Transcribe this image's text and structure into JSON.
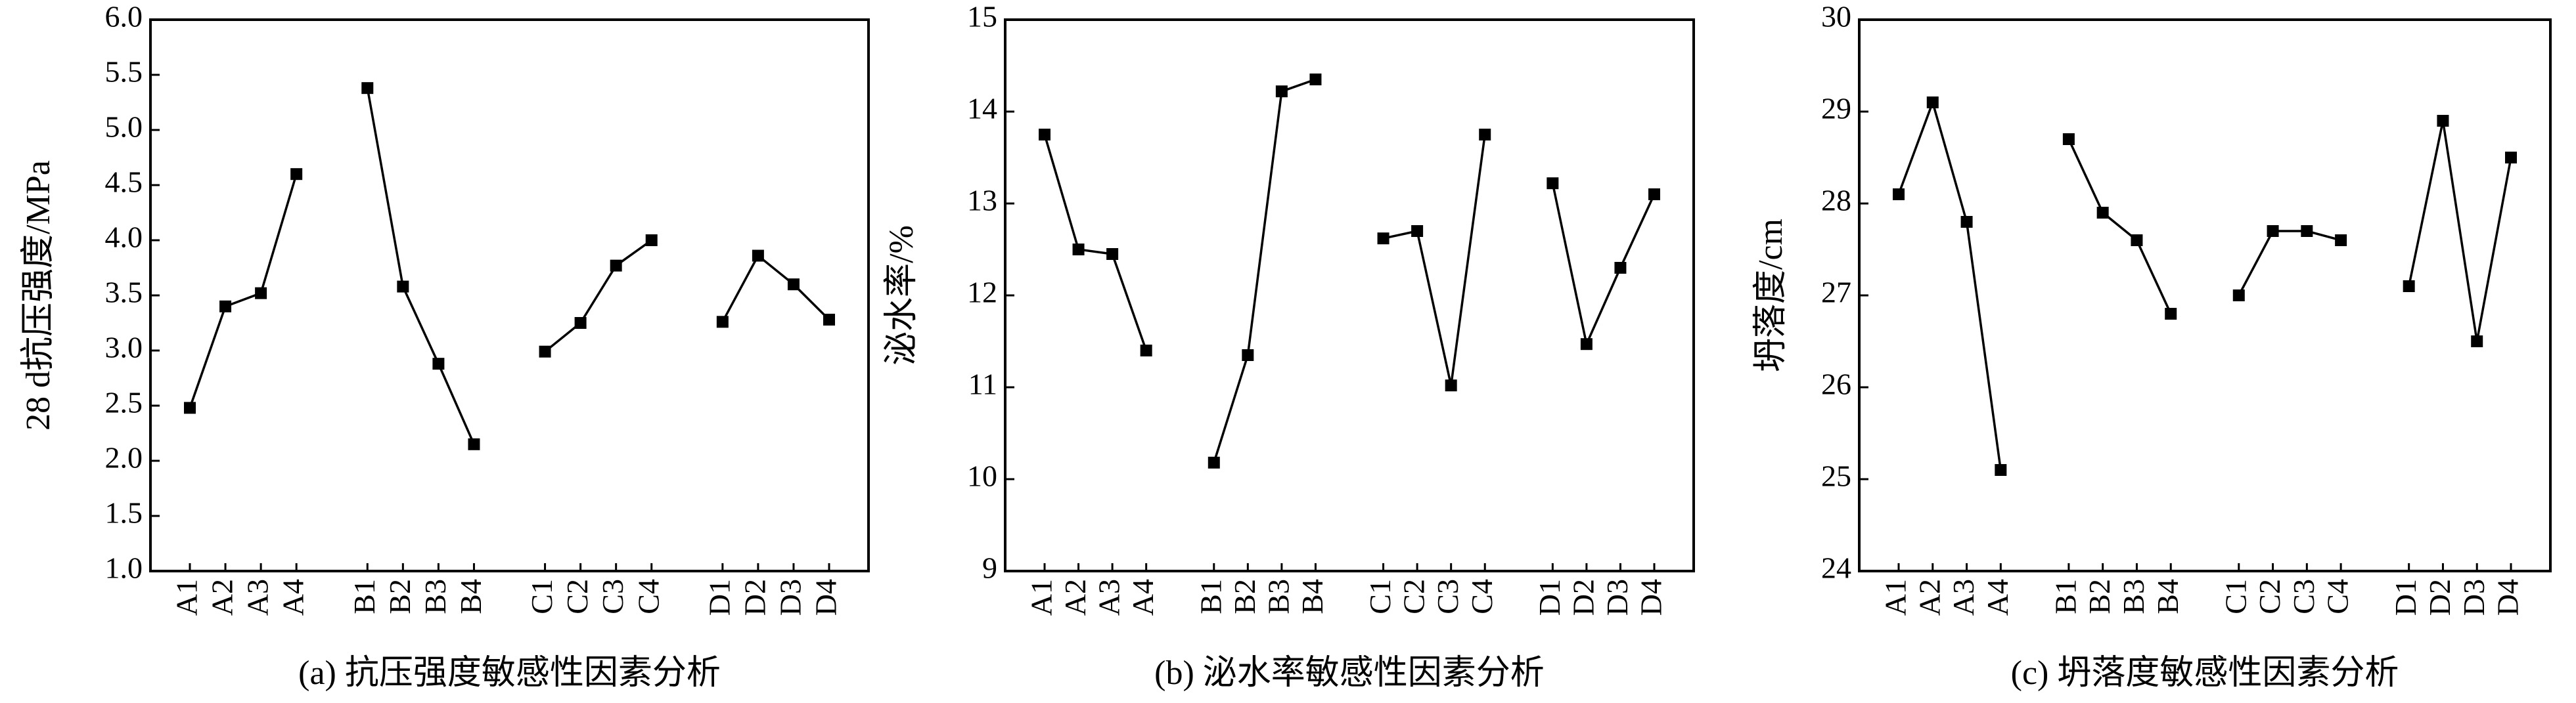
{
  "chart_data": [
    {
      "type": "line",
      "title": "(a) 抗压强度敏感性因素分析",
      "ylabel": "28 d抗压强度/MPa",
      "categories": [
        "A1",
        "A2",
        "A3",
        "A4",
        null,
        "B1",
        "B2",
        "B3",
        "B4",
        null,
        "C1",
        "C2",
        "C3",
        "C4",
        null,
        "D1",
        "D2",
        "D3",
        "D4"
      ],
      "values": [
        2.48,
        3.4,
        3.52,
        4.6,
        null,
        5.38,
        3.58,
        2.88,
        2.15,
        null,
        2.99,
        3.25,
        3.77,
        4.0,
        null,
        3.26,
        3.86,
        3.6,
        3.28
      ],
      "color": "#000000",
      "ylim": [
        1,
        6
      ],
      "yticks": [
        {
          "value": 1,
          "label": "1.0"
        },
        1.5,
        {
          "value": 2,
          "label": "2.0"
        },
        2.5,
        {
          "value": 3,
          "label": "3.0"
        },
        3.5,
        {
          "value": 4,
          "label": "4.0"
        },
        4.5,
        {
          "value": 5,
          "label": "5.0"
        },
        5.5,
        {
          "value": 6,
          "label": "6.0"
        }
      ]
    },
    {
      "type": "line",
      "title": "(b) 泌水率敏感性因素分析",
      "ylabel": "泌水率/%",
      "categories": [
        "A1",
        "A2",
        "A3",
        "A4",
        null,
        "B1",
        "B2",
        "B3",
        "B4",
        null,
        "C1",
        "C2",
        "C3",
        "C4",
        null,
        "D1",
        "D2",
        "D3",
        "D4"
      ],
      "values": [
        13.75,
        12.5,
        12.45,
        11.4,
        null,
        10.18,
        11.35,
        14.22,
        14.35,
        null,
        12.62,
        12.7,
        11.02,
        13.75,
        null,
        13.22,
        11.47,
        12.3,
        13.1
      ],
      "color": "#000000",
      "ylim": [
        9,
        15
      ],
      "yticks": [
        9,
        10,
        11,
        12,
        13,
        14,
        15
      ]
    },
    {
      "type": "line",
      "title": "(c) 坍落度敏感性因素分析",
      "ylabel": "坍落度/cm",
      "categories": [
        "A1",
        "A2",
        "A3",
        "A4",
        null,
        "B1",
        "B2",
        "B3",
        "B4",
        null,
        "C1",
        "C2",
        "C3",
        "C4",
        null,
        "D1",
        "D2",
        "D3",
        "D4"
      ],
      "values": [
        28.1,
        29.1,
        27.8,
        25.1,
        null,
        28.7,
        27.9,
        27.6,
        26.8,
        null,
        27.0,
        27.7,
        27.7,
        27.6,
        null,
        27.1,
        28.9,
        26.5,
        28.5
      ],
      "color": "#000000",
      "ylim": [
        24,
        30
      ],
      "yticks": [
        24,
        25,
        26,
        27,
        28,
        29,
        30
      ]
    }
  ]
}
